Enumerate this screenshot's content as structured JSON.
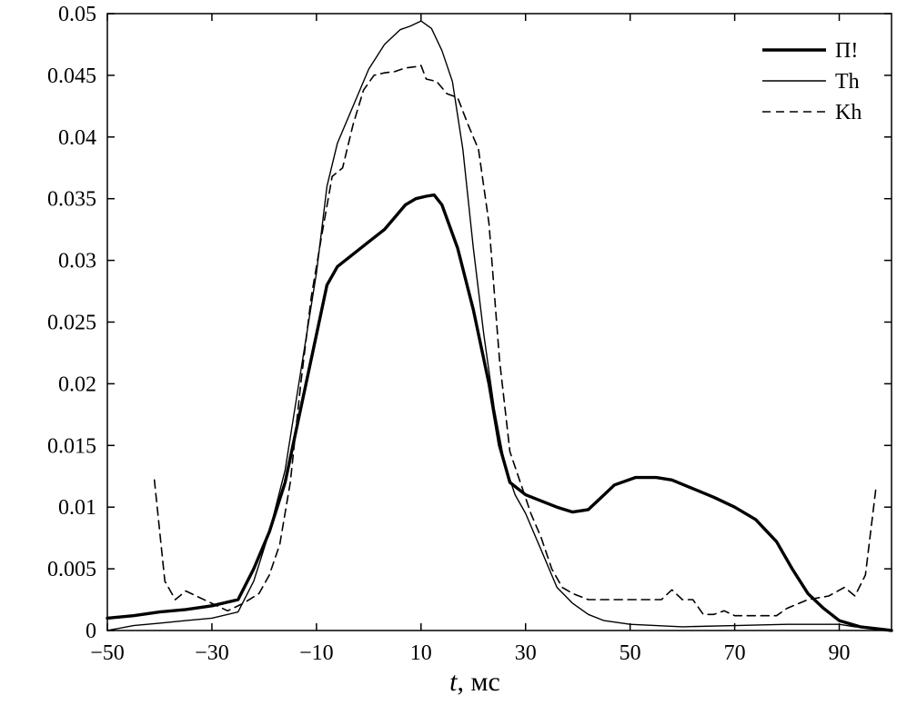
{
  "chart_data": {
    "type": "line",
    "title": "",
    "xlabel_var": "t",
    "xlabel_unit": ", мс",
    "ylabel": "",
    "xlim": [
      -50,
      100
    ],
    "ylim": [
      0,
      0.05
    ],
    "xticks": [
      -50,
      -30,
      -10,
      10,
      30,
      50,
      70,
      90
    ],
    "xtick_labels": [
      "−50",
      "−30",
      "−10",
      "10",
      "30",
      "50",
      "70",
      "90"
    ],
    "yticks": [
      0,
      0.005,
      0.01,
      0.015,
      0.02,
      0.025,
      0.03,
      0.035,
      0.04,
      0.045,
      0.05
    ],
    "ytick_labels": [
      "0",
      "0.005",
      "0.01",
      "0.015",
      "0.02",
      "0.025",
      "0.03",
      "0.035",
      "0.04",
      "0.045",
      "0.05"
    ],
    "grid": false,
    "legend_position": "top-right",
    "series": [
      {
        "name": "П!",
        "style": "solid-thick",
        "color": "#000000",
        "points": [
          [
            -50,
            0.001
          ],
          [
            -45,
            0.0012
          ],
          [
            -40,
            0.0015
          ],
          [
            -35,
            0.0017
          ],
          [
            -30,
            0.002
          ],
          [
            -25,
            0.0025
          ],
          [
            -22,
            0.005
          ],
          [
            -19,
            0.008
          ],
          [
            -16,
            0.012
          ],
          [
            -13,
            0.018
          ],
          [
            -10,
            0.024
          ],
          [
            -8,
            0.028
          ],
          [
            -6,
            0.0295
          ],
          [
            -3,
            0.0305
          ],
          [
            0,
            0.0315
          ],
          [
            3,
            0.0325
          ],
          [
            5,
            0.0335
          ],
          [
            7,
            0.0345
          ],
          [
            9,
            0.035
          ],
          [
            11,
            0.0352
          ],
          [
            12.5,
            0.0353
          ],
          [
            14,
            0.0345
          ],
          [
            17,
            0.031
          ],
          [
            20,
            0.026
          ],
          [
            23,
            0.02
          ],
          [
            25,
            0.015
          ],
          [
            27,
            0.012
          ],
          [
            30,
            0.011
          ],
          [
            33,
            0.0105
          ],
          [
            36,
            0.01
          ],
          [
            39,
            0.0096
          ],
          [
            42,
            0.0098
          ],
          [
            44,
            0.0106
          ],
          [
            47,
            0.0118
          ],
          [
            51,
            0.0124
          ],
          [
            55,
            0.0124
          ],
          [
            58,
            0.0122
          ],
          [
            62,
            0.0115
          ],
          [
            66,
            0.0108
          ],
          [
            70,
            0.01
          ],
          [
            74,
            0.009
          ],
          [
            78,
            0.0072
          ],
          [
            81,
            0.005
          ],
          [
            84,
            0.003
          ],
          [
            87,
            0.0018
          ],
          [
            90,
            0.0008
          ],
          [
            94,
            0.0003
          ],
          [
            98,
            0.0001
          ],
          [
            100,
            0
          ]
        ]
      },
      {
        "name": "Th",
        "style": "solid-thin",
        "color": "#000000",
        "points": [
          [
            -50,
            0
          ],
          [
            -45,
            0.0004
          ],
          [
            -40,
            0.0006
          ],
          [
            -35,
            0.0008
          ],
          [
            -30,
            0.001
          ],
          [
            -25,
            0.0015
          ],
          [
            -22,
            0.004
          ],
          [
            -19,
            0.008
          ],
          [
            -16,
            0.013
          ],
          [
            -13,
            0.021
          ],
          [
            -10,
            0.029
          ],
          [
            -8,
            0.036
          ],
          [
            -6,
            0.0395
          ],
          [
            -3,
            0.0425
          ],
          [
            0,
            0.0455
          ],
          [
            3,
            0.0475
          ],
          [
            6,
            0.0487
          ],
          [
            8,
            0.049
          ],
          [
            10,
            0.0494
          ],
          [
            12,
            0.0488
          ],
          [
            14,
            0.047
          ],
          [
            16,
            0.0445
          ],
          [
            18,
            0.039
          ],
          [
            20,
            0.031
          ],
          [
            22,
            0.024
          ],
          [
            24,
            0.018
          ],
          [
            26,
            0.0135
          ],
          [
            28,
            0.011
          ],
          [
            30,
            0.0095
          ],
          [
            33,
            0.0065
          ],
          [
            36,
            0.0035
          ],
          [
            39,
            0.0022
          ],
          [
            42,
            0.0013
          ],
          [
            45,
            0.0008
          ],
          [
            50,
            0.0005
          ],
          [
            60,
            0.0003
          ],
          [
            70,
            0.0004
          ],
          [
            80,
            0.0005
          ],
          [
            90,
            0.0005
          ],
          [
            93,
            0.0003
          ],
          [
            96,
            0.0002
          ],
          [
            100,
            0
          ]
        ]
      },
      {
        "name": "Kh",
        "style": "dashed",
        "color": "#000000",
        "points": [
          [
            -41,
            0.0122
          ],
          [
            -39,
            0.004
          ],
          [
            -37,
            0.0025
          ],
          [
            -35,
            0.0032
          ],
          [
            -33,
            0.0028
          ],
          [
            -30,
            0.0022
          ],
          [
            -27,
            0.0016
          ],
          [
            -24,
            0.0022
          ],
          [
            -21,
            0.003
          ],
          [
            -19,
            0.0045
          ],
          [
            -17,
            0.007
          ],
          [
            -15,
            0.012
          ],
          [
            -13,
            0.02
          ],
          [
            -11,
            0.027
          ],
          [
            -9,
            0.032
          ],
          [
            -7,
            0.0368
          ],
          [
            -5,
            0.0375
          ],
          [
            -3,
            0.041
          ],
          [
            -1,
            0.0438
          ],
          [
            1,
            0.045
          ],
          [
            3,
            0.0452
          ],
          [
            5,
            0.0453
          ],
          [
            7,
            0.0456
          ],
          [
            9,
            0.0457
          ],
          [
            10,
            0.0458
          ],
          [
            11,
            0.0447
          ],
          [
            13,
            0.0445
          ],
          [
            15,
            0.0435
          ],
          [
            17,
            0.0432
          ],
          [
            19,
            0.041
          ],
          [
            21,
            0.039
          ],
          [
            23,
            0.033
          ],
          [
            25,
            0.022
          ],
          [
            27,
            0.0145
          ],
          [
            29,
            0.012
          ],
          [
            31,
            0.0095
          ],
          [
            33,
            0.0075
          ],
          [
            35,
            0.005
          ],
          [
            37,
            0.0035
          ],
          [
            39,
            0.003
          ],
          [
            42,
            0.0025
          ],
          [
            46,
            0.0025
          ],
          [
            50,
            0.0025
          ],
          [
            53,
            0.0025
          ],
          [
            56,
            0.0025
          ],
          [
            58,
            0.0033
          ],
          [
            60,
            0.0025
          ],
          [
            62,
            0.0025
          ],
          [
            64,
            0.0013
          ],
          [
            66,
            0.0013
          ],
          [
            68,
            0.0016
          ],
          [
            70,
            0.0012
          ],
          [
            74,
            0.0012
          ],
          [
            78,
            0.0012
          ],
          [
            80,
            0.0018
          ],
          [
            84,
            0.0025
          ],
          [
            88,
            0.0028
          ],
          [
            91,
            0.0035
          ],
          [
            93,
            0.0028
          ],
          [
            95,
            0.0045
          ],
          [
            97,
            0.0115
          ]
        ]
      }
    ]
  }
}
